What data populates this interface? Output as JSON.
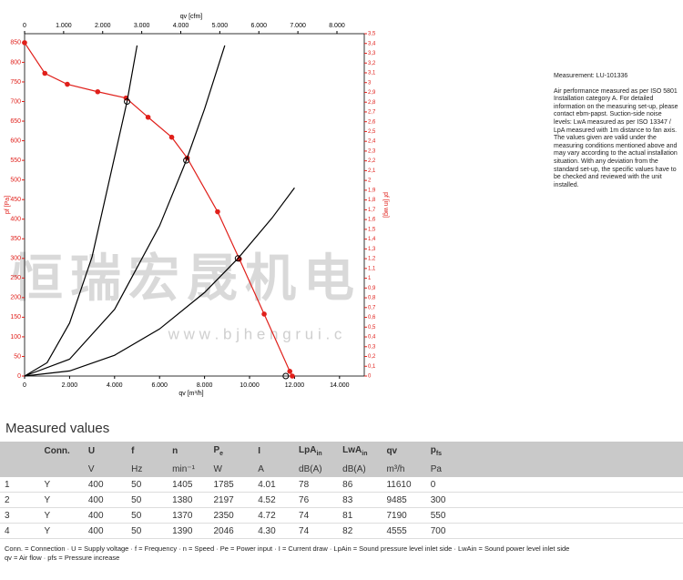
{
  "chart_data": {
    "type": "line",
    "x_label": "qv [m³/h]",
    "x2_label": "qv [cfm]",
    "y_label": "pf [Pa]",
    "y2_label": "pf [in wg]",
    "xlim": [
      0,
      15100
    ],
    "x2lim": [
      0,
      8700
    ],
    "ylim": [
      0,
      873
    ],
    "y2lim": [
      0,
      3.5
    ],
    "xticks": [
      0,
      {
        "value": 2000,
        "label": "2.000"
      },
      {
        "value": 4000,
        "label": "4.000"
      },
      {
        "value": 6000,
        "label": "6.000"
      },
      {
        "value": 8000,
        "label": "8.000"
      },
      {
        "value": 10000,
        "label": "10.000"
      },
      {
        "value": 12000,
        "label": "12.000"
      },
      {
        "value": 14000,
        "label": "14.000"
      }
    ],
    "x2ticks": [
      0,
      {
        "value": 1000,
        "label": "1.000"
      },
      {
        "value": 2000,
        "label": "2.000"
      },
      {
        "value": 3000,
        "label": "3.000"
      },
      {
        "value": 4000,
        "label": "4.000"
      },
      {
        "value": 5000,
        "label": "5.000"
      },
      {
        "value": 6000,
        "label": "6.000"
      },
      {
        "value": 7000,
        "label": "7.000"
      },
      {
        "value": 8000,
        "label": "8.000"
      }
    ],
    "yticks": [
      0,
      50,
      100,
      150,
      200,
      250,
      300,
      350,
      400,
      450,
      500,
      550,
      600,
      650,
      700,
      750,
      800,
      850
    ],
    "y2ticks": [
      0,
      {
        "value": 0.1,
        "label": "0,1"
      },
      {
        "value": 0.2,
        "label": "0,2"
      },
      {
        "value": 0.3,
        "label": "0,3"
      },
      {
        "value": 0.4,
        "label": "0,4"
      },
      {
        "value": 0.5,
        "label": "0,5"
      },
      {
        "value": 0.6,
        "label": "0,6"
      },
      {
        "value": 0.7,
        "label": "0,7"
      },
      {
        "value": 0.8,
        "label": "0,8"
      },
      {
        "value": 0.9,
        "label": "0,9"
      },
      1,
      {
        "value": 1.1,
        "label": "1,1"
      },
      {
        "value": 1.2,
        "label": "1,2"
      },
      {
        "value": 1.3,
        "label": "1,3"
      },
      {
        "value": 1.4,
        "label": "1,4"
      },
      {
        "value": 1.5,
        "label": "1,5"
      },
      {
        "value": 1.6,
        "label": "1,6"
      },
      {
        "value": 1.7,
        "label": "1,7"
      },
      {
        "value": 1.8,
        "label": "1,8"
      },
      {
        "value": 1.9,
        "label": "1,9"
      },
      2,
      {
        "value": 2.1,
        "label": "2,1"
      },
      {
        "value": 2.2,
        "label": "2,2"
      },
      {
        "value": 2.3,
        "label": "2,3"
      },
      {
        "value": 2.4,
        "label": "2,4"
      },
      {
        "value": 2.5,
        "label": "2,5"
      },
      {
        "value": 2.6,
        "label": "2,6"
      },
      {
        "value": 2.7,
        "label": "2,7"
      },
      {
        "value": 2.8,
        "label": "2,8"
      },
      {
        "value": 2.9,
        "label": "2,9"
      },
      3,
      {
        "value": 3.1,
        "label": "3,1"
      },
      {
        "value": 3.2,
        "label": "3,2"
      },
      {
        "value": 3.3,
        "label": "3,3"
      },
      {
        "value": 3.4,
        "label": "3,4"
      },
      {
        "value": 3.5,
        "label": "3,5"
      }
    ],
    "series": [
      {
        "color": "#e0201b",
        "markers": true,
        "x": [
          0,
          900,
          1900,
          3250,
          4510,
          5490,
          6540,
          7230,
          8580,
          9550,
          10650,
          11790,
          11900
        ],
        "values": [
          850,
          772,
          744,
          725,
          709,
          660,
          609,
          556,
          419,
          298,
          158,
          12,
          0
        ]
      },
      {
        "color": "#000000",
        "x": [
          0,
          1000,
          2000,
          3000,
          4555,
          5000
        ],
        "values": [
          0,
          34,
          135,
          304,
          700,
          843
        ]
      },
      {
        "color": "#000000",
        "x": [
          0,
          2000,
          4000,
          6000,
          7190,
          8000,
          8900
        ],
        "values": [
          0,
          43,
          170,
          383,
          550,
          681,
          843
        ]
      },
      {
        "color": "#000000",
        "x": [
          0,
          2000,
          4000,
          6000,
          8000,
          9485,
          11000,
          12000
        ],
        "values": [
          0,
          13,
          53,
          120,
          213,
          300,
          403,
          480
        ]
      },
      {
        "color": "#000000",
        "points": true,
        "x": [
          11610,
          9485,
          7190,
          4555
        ],
        "values": [
          0,
          300,
          550,
          700
        ]
      }
    ]
  },
  "watermark": [
    "恒瑞宏晟机电",
    "w w w . b j h e n g r u i . c"
  ],
  "info": {
    "measurement": "Measurement: LU-101336",
    "text": "Air performance measured as per ISO 5801 Installation category A. For detailed information on the measuring set-up, please contact ebm-papst. Suction-side noise levels: LwA measured as per ISO 13347 / LpA measured with 1m distance to fan axis. The values given are valid under the measuring conditions mentioned above and may vary according to the actual installation situation. With any deviation from the standard set-up, the specific values have to be checked and reviewed with the unit installed."
  },
  "table": {
    "title": "Measured values",
    "header": [
      "Conn.",
      "U",
      "f",
      "n",
      {
        "main": "P",
        "sub": "e"
      },
      "I",
      {
        "main": "LpA",
        "sub": "in"
      },
      {
        "main": "LwA",
        "sub": "in"
      },
      "qv",
      {
        "main": "p",
        "sub": "fs"
      }
    ],
    "units": [
      "V",
      "Hz",
      "min⁻¹",
      "W",
      "A",
      "dB(A)",
      "dB(A)",
      "m³/h",
      "Pa"
    ],
    "rows": [
      [
        "1",
        "Y",
        "400",
        "50",
        "1405",
        "1785",
        "4.01",
        "78",
        "86",
        "11610",
        "0"
      ],
      [
        "2",
        "Y",
        "400",
        "50",
        "1380",
        "2197",
        "4.52",
        "76",
        "83",
        "9485",
        "300"
      ],
      [
        "3",
        "Y",
        "400",
        "50",
        "1370",
        "2350",
        "4.72",
        "74",
        "81",
        "7190",
        "550"
      ],
      [
        "4",
        "Y",
        "400",
        "50",
        "1390",
        "2046",
        "4.30",
        "74",
        "82",
        "4555",
        "700"
      ]
    ],
    "legend": [
      "Conn. = Connection · U = Supply voltage · f = Frequency · n = Speed · Pe = Power input · I = Current draw · LpAin = Sound pressure level inlet side · LwAin = Sound power level inlet side",
      "qv = Air flow · pfs = Pressure increase"
    ]
  }
}
